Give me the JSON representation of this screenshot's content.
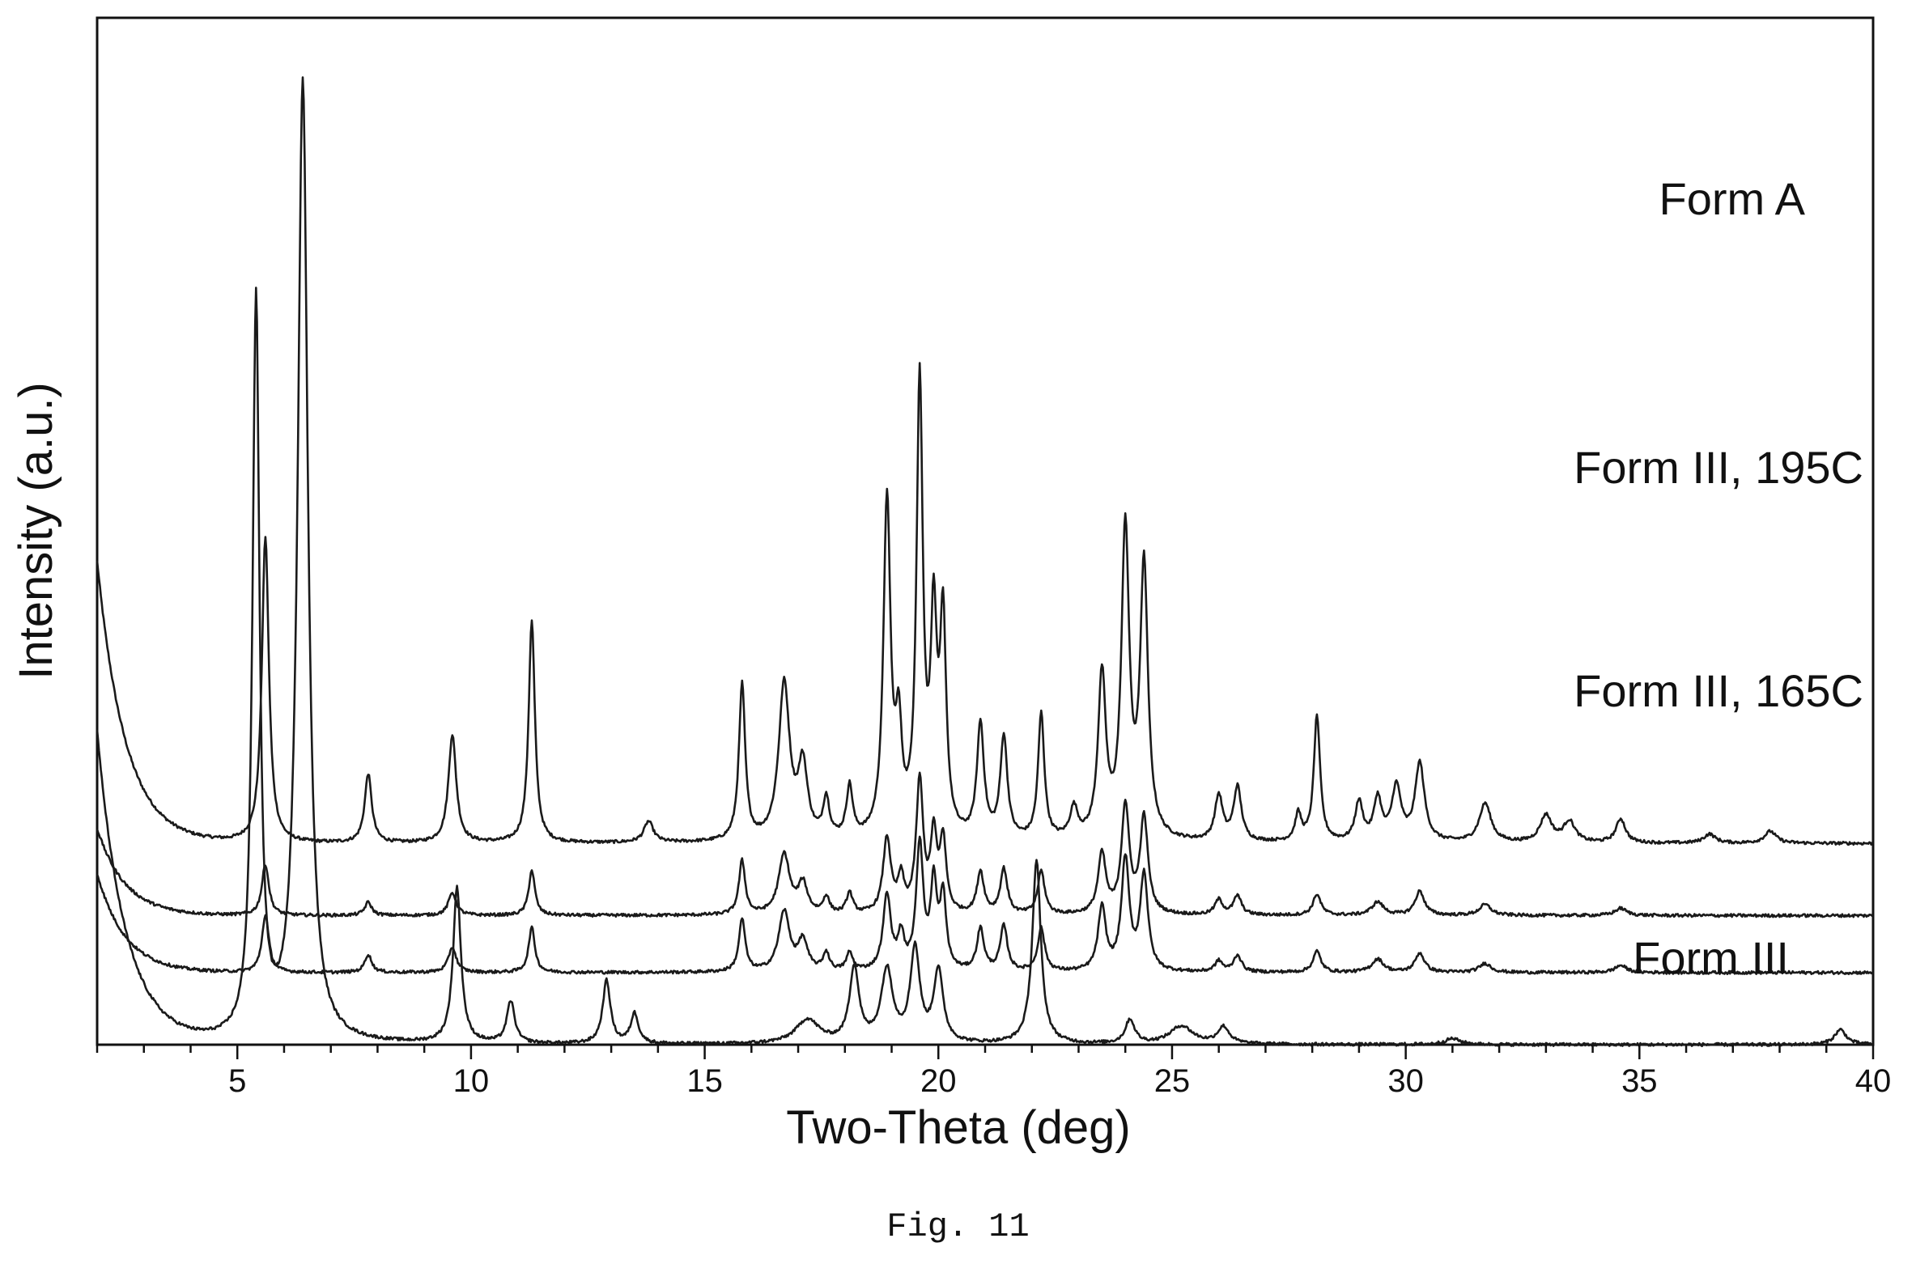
{
  "chart_data": {
    "type": "line",
    "xlabel": "Two-Theta (deg)",
    "ylabel": "Intensity (a.u.)",
    "xlim": [
      2,
      40
    ],
    "x_ticks": [
      5,
      10,
      15,
      20,
      25,
      30,
      35,
      40
    ],
    "x_minor_step": 1,
    "y_ticks": [],
    "grid": false,
    "legend": "none",
    "line_color": "#1a1a1a",
    "series": [
      {
        "name": "Form A",
        "baseline": 4.7,
        "offset": 3.35,
        "peaks": [
          [
            5.6,
            5.1,
            0.09
          ],
          [
            7.8,
            1.15,
            0.09
          ],
          [
            9.6,
            1.8,
            0.1
          ],
          [
            11.3,
            3.7,
            0.08
          ],
          [
            13.8,
            0.35,
            0.12
          ],
          [
            15.8,
            2.6,
            0.08
          ],
          [
            16.7,
            2.6,
            0.14
          ],
          [
            17.1,
            1.2,
            0.12
          ],
          [
            17.6,
            0.65,
            0.08
          ],
          [
            18.1,
            0.85,
            0.08
          ],
          [
            18.9,
            5.6,
            0.09
          ],
          [
            19.15,
            1.6,
            0.08
          ],
          [
            19.6,
            7.5,
            0.08
          ],
          [
            19.9,
            3.4,
            0.08
          ],
          [
            20.1,
            3.5,
            0.08
          ],
          [
            20.9,
            1.9,
            0.09
          ],
          [
            21.4,
            1.7,
            0.09
          ],
          [
            22.2,
            2.1,
            0.08
          ],
          [
            22.9,
            0.5,
            0.1
          ],
          [
            23.5,
            2.7,
            0.1
          ],
          [
            24.0,
            5.1,
            0.1
          ],
          [
            24.4,
            4.5,
            0.1
          ],
          [
            26.0,
            0.75,
            0.1
          ],
          [
            26.4,
            0.9,
            0.1
          ],
          [
            27.7,
            0.45,
            0.08
          ],
          [
            28.1,
            2.1,
            0.08
          ],
          [
            29.0,
            0.65,
            0.1
          ],
          [
            29.4,
            0.7,
            0.1
          ],
          [
            29.8,
            0.9,
            0.12
          ],
          [
            30.3,
            1.3,
            0.12
          ],
          [
            31.7,
            0.65,
            0.15
          ],
          [
            33.0,
            0.45,
            0.15
          ],
          [
            33.5,
            0.35,
            0.15
          ],
          [
            34.6,
            0.4,
            0.12
          ],
          [
            36.5,
            0.15,
            0.15
          ],
          [
            37.8,
            0.2,
            0.15
          ]
        ]
      },
      {
        "name": "Form III, 195C",
        "baseline": 1.45,
        "offset": 2.15,
        "peaks": [
          [
            5.6,
            0.85,
            0.09
          ],
          [
            7.8,
            0.22,
            0.09
          ],
          [
            9.6,
            0.38,
            0.1
          ],
          [
            11.3,
            0.75,
            0.08
          ],
          [
            15.8,
            0.9,
            0.08
          ],
          [
            16.7,
            1.0,
            0.14
          ],
          [
            17.1,
            0.5,
            0.12
          ],
          [
            17.6,
            0.28,
            0.08
          ],
          [
            18.1,
            0.35,
            0.08
          ],
          [
            18.9,
            1.25,
            0.1
          ],
          [
            19.2,
            0.55,
            0.08
          ],
          [
            19.6,
            2.2,
            0.09
          ],
          [
            19.9,
            1.25,
            0.08
          ],
          [
            20.1,
            1.2,
            0.08
          ],
          [
            20.9,
            0.7,
            0.09
          ],
          [
            21.4,
            0.75,
            0.09
          ],
          [
            22.2,
            0.72,
            0.09
          ],
          [
            23.5,
            1.0,
            0.1
          ],
          [
            24.0,
            1.8,
            0.1
          ],
          [
            24.4,
            1.6,
            0.1
          ],
          [
            26.0,
            0.25,
            0.1
          ],
          [
            26.4,
            0.32,
            0.1
          ],
          [
            28.1,
            0.35,
            0.1
          ],
          [
            29.4,
            0.22,
            0.15
          ],
          [
            30.3,
            0.4,
            0.12
          ],
          [
            31.7,
            0.18,
            0.15
          ],
          [
            34.6,
            0.12,
            0.15
          ]
        ]
      },
      {
        "name": "Form III, 165C",
        "baseline": 1.65,
        "offset": 1.2,
        "peaks": [
          [
            5.6,
            0.95,
            0.09
          ],
          [
            7.8,
            0.3,
            0.09
          ],
          [
            9.6,
            0.42,
            0.1
          ],
          [
            11.3,
            0.75,
            0.08
          ],
          [
            15.8,
            0.88,
            0.08
          ],
          [
            16.7,
            1.0,
            0.14
          ],
          [
            17.1,
            0.5,
            0.12
          ],
          [
            17.6,
            0.3,
            0.08
          ],
          [
            18.1,
            0.3,
            0.08
          ],
          [
            18.9,
            1.25,
            0.1
          ],
          [
            19.2,
            0.55,
            0.08
          ],
          [
            19.6,
            2.1,
            0.09
          ],
          [
            19.9,
            1.4,
            0.08
          ],
          [
            20.1,
            1.2,
            0.08
          ],
          [
            20.9,
            0.7,
            0.09
          ],
          [
            21.4,
            0.75,
            0.09
          ],
          [
            22.2,
            0.72,
            0.09
          ],
          [
            23.5,
            1.05,
            0.1
          ],
          [
            24.0,
            1.85,
            0.1
          ],
          [
            24.4,
            1.6,
            0.1
          ],
          [
            26.0,
            0.18,
            0.1
          ],
          [
            26.4,
            0.28,
            0.1
          ],
          [
            28.1,
            0.35,
            0.1
          ],
          [
            29.4,
            0.22,
            0.15
          ],
          [
            30.3,
            0.32,
            0.12
          ],
          [
            31.7,
            0.15,
            0.15
          ],
          [
            34.6,
            0.12,
            0.15
          ]
        ]
      },
      {
        "name": "Form III",
        "baseline": 5.2,
        "offset": 0.0,
        "peaks": [
          [
            5.4,
            12.3,
            0.09
          ],
          [
            6.4,
            16.0,
            0.13
          ],
          [
            9.7,
            2.6,
            0.1
          ],
          [
            10.85,
            0.7,
            0.1
          ],
          [
            12.9,
            1.05,
            0.1
          ],
          [
            13.5,
            0.5,
            0.1
          ],
          [
            17.2,
            0.4,
            0.3
          ],
          [
            18.2,
            1.25,
            0.12
          ],
          [
            18.9,
            1.2,
            0.15
          ],
          [
            19.5,
            1.55,
            0.12
          ],
          [
            20.0,
            1.2,
            0.12
          ],
          [
            22.1,
            3.05,
            0.11
          ],
          [
            24.1,
            0.4,
            0.12
          ],
          [
            25.2,
            0.3,
            0.3
          ],
          [
            26.1,
            0.28,
            0.15
          ],
          [
            31.0,
            0.1,
            0.2
          ],
          [
            39.3,
            0.25,
            0.15
          ]
        ]
      }
    ]
  },
  "caption": "Fig. 11"
}
